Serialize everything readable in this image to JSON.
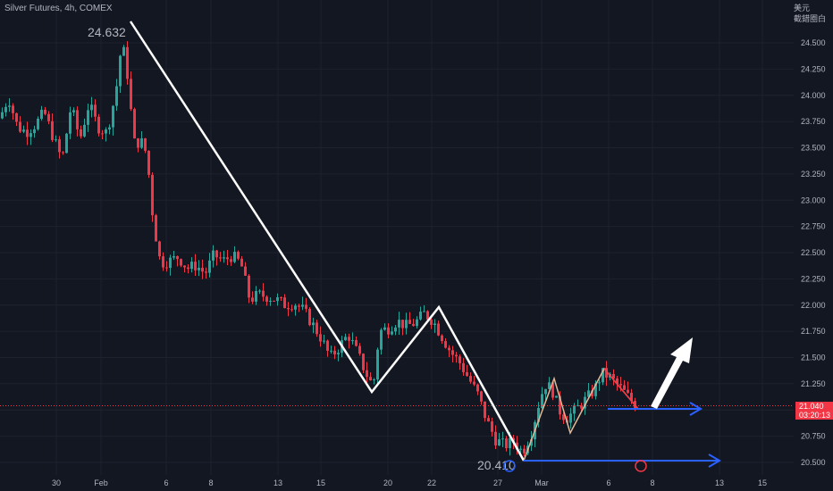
{
  "header": {
    "title": "Silver Futures, 4h, COMEX",
    "currency_line1": "美元",
    "currency_line2": "截錯圈白"
  },
  "price_tag": {
    "price": "21.040",
    "countdown": "03:20:13"
  },
  "colors": {
    "background": "#131722",
    "up": "#26a69a",
    "down": "#f23645",
    "grid": "#1e222d",
    "axis_text": "#b2b5be",
    "annotation_white": "#ffffff",
    "annotation_blue": "#2962ff",
    "annotation_tan": "#e0b896",
    "annotation_red": "#f23645"
  },
  "chart_data": {
    "type": "candlestick",
    "title": "Silver Futures, 4h, COMEX",
    "y_axis": {
      "ticks": [
        "24.500",
        "24.250",
        "24.000",
        "23.750",
        "23.500",
        "23.250",
        "23.000",
        "22.750",
        "22.500",
        "22.250",
        "22.000",
        "21.750",
        "21.500",
        "21.250",
        "21.000",
        "20.750",
        "20.500"
      ],
      "range": [
        20.45,
        24.85
      ]
    },
    "x_axis": {
      "ticks": [
        "30",
        "Feb",
        "6",
        "8",
        "13",
        "15",
        "20",
        "22",
        "27",
        "Mar",
        "6",
        "8",
        "13",
        "15"
      ]
    },
    "annotations": {
      "high_label": "24.632",
      "low_label": "20.410",
      "zigzag_points": [
        [
          0,
          24.73
        ],
        [
          1,
          21.17
        ],
        [
          2,
          22.0
        ],
        [
          3,
          20.55
        ]
      ]
    },
    "current_price": 21.04,
    "candles_ohlc_overview": {
      "start": 24.2,
      "peak": 24.63,
      "low": 20.41,
      "end": 21.04
    }
  }
}
